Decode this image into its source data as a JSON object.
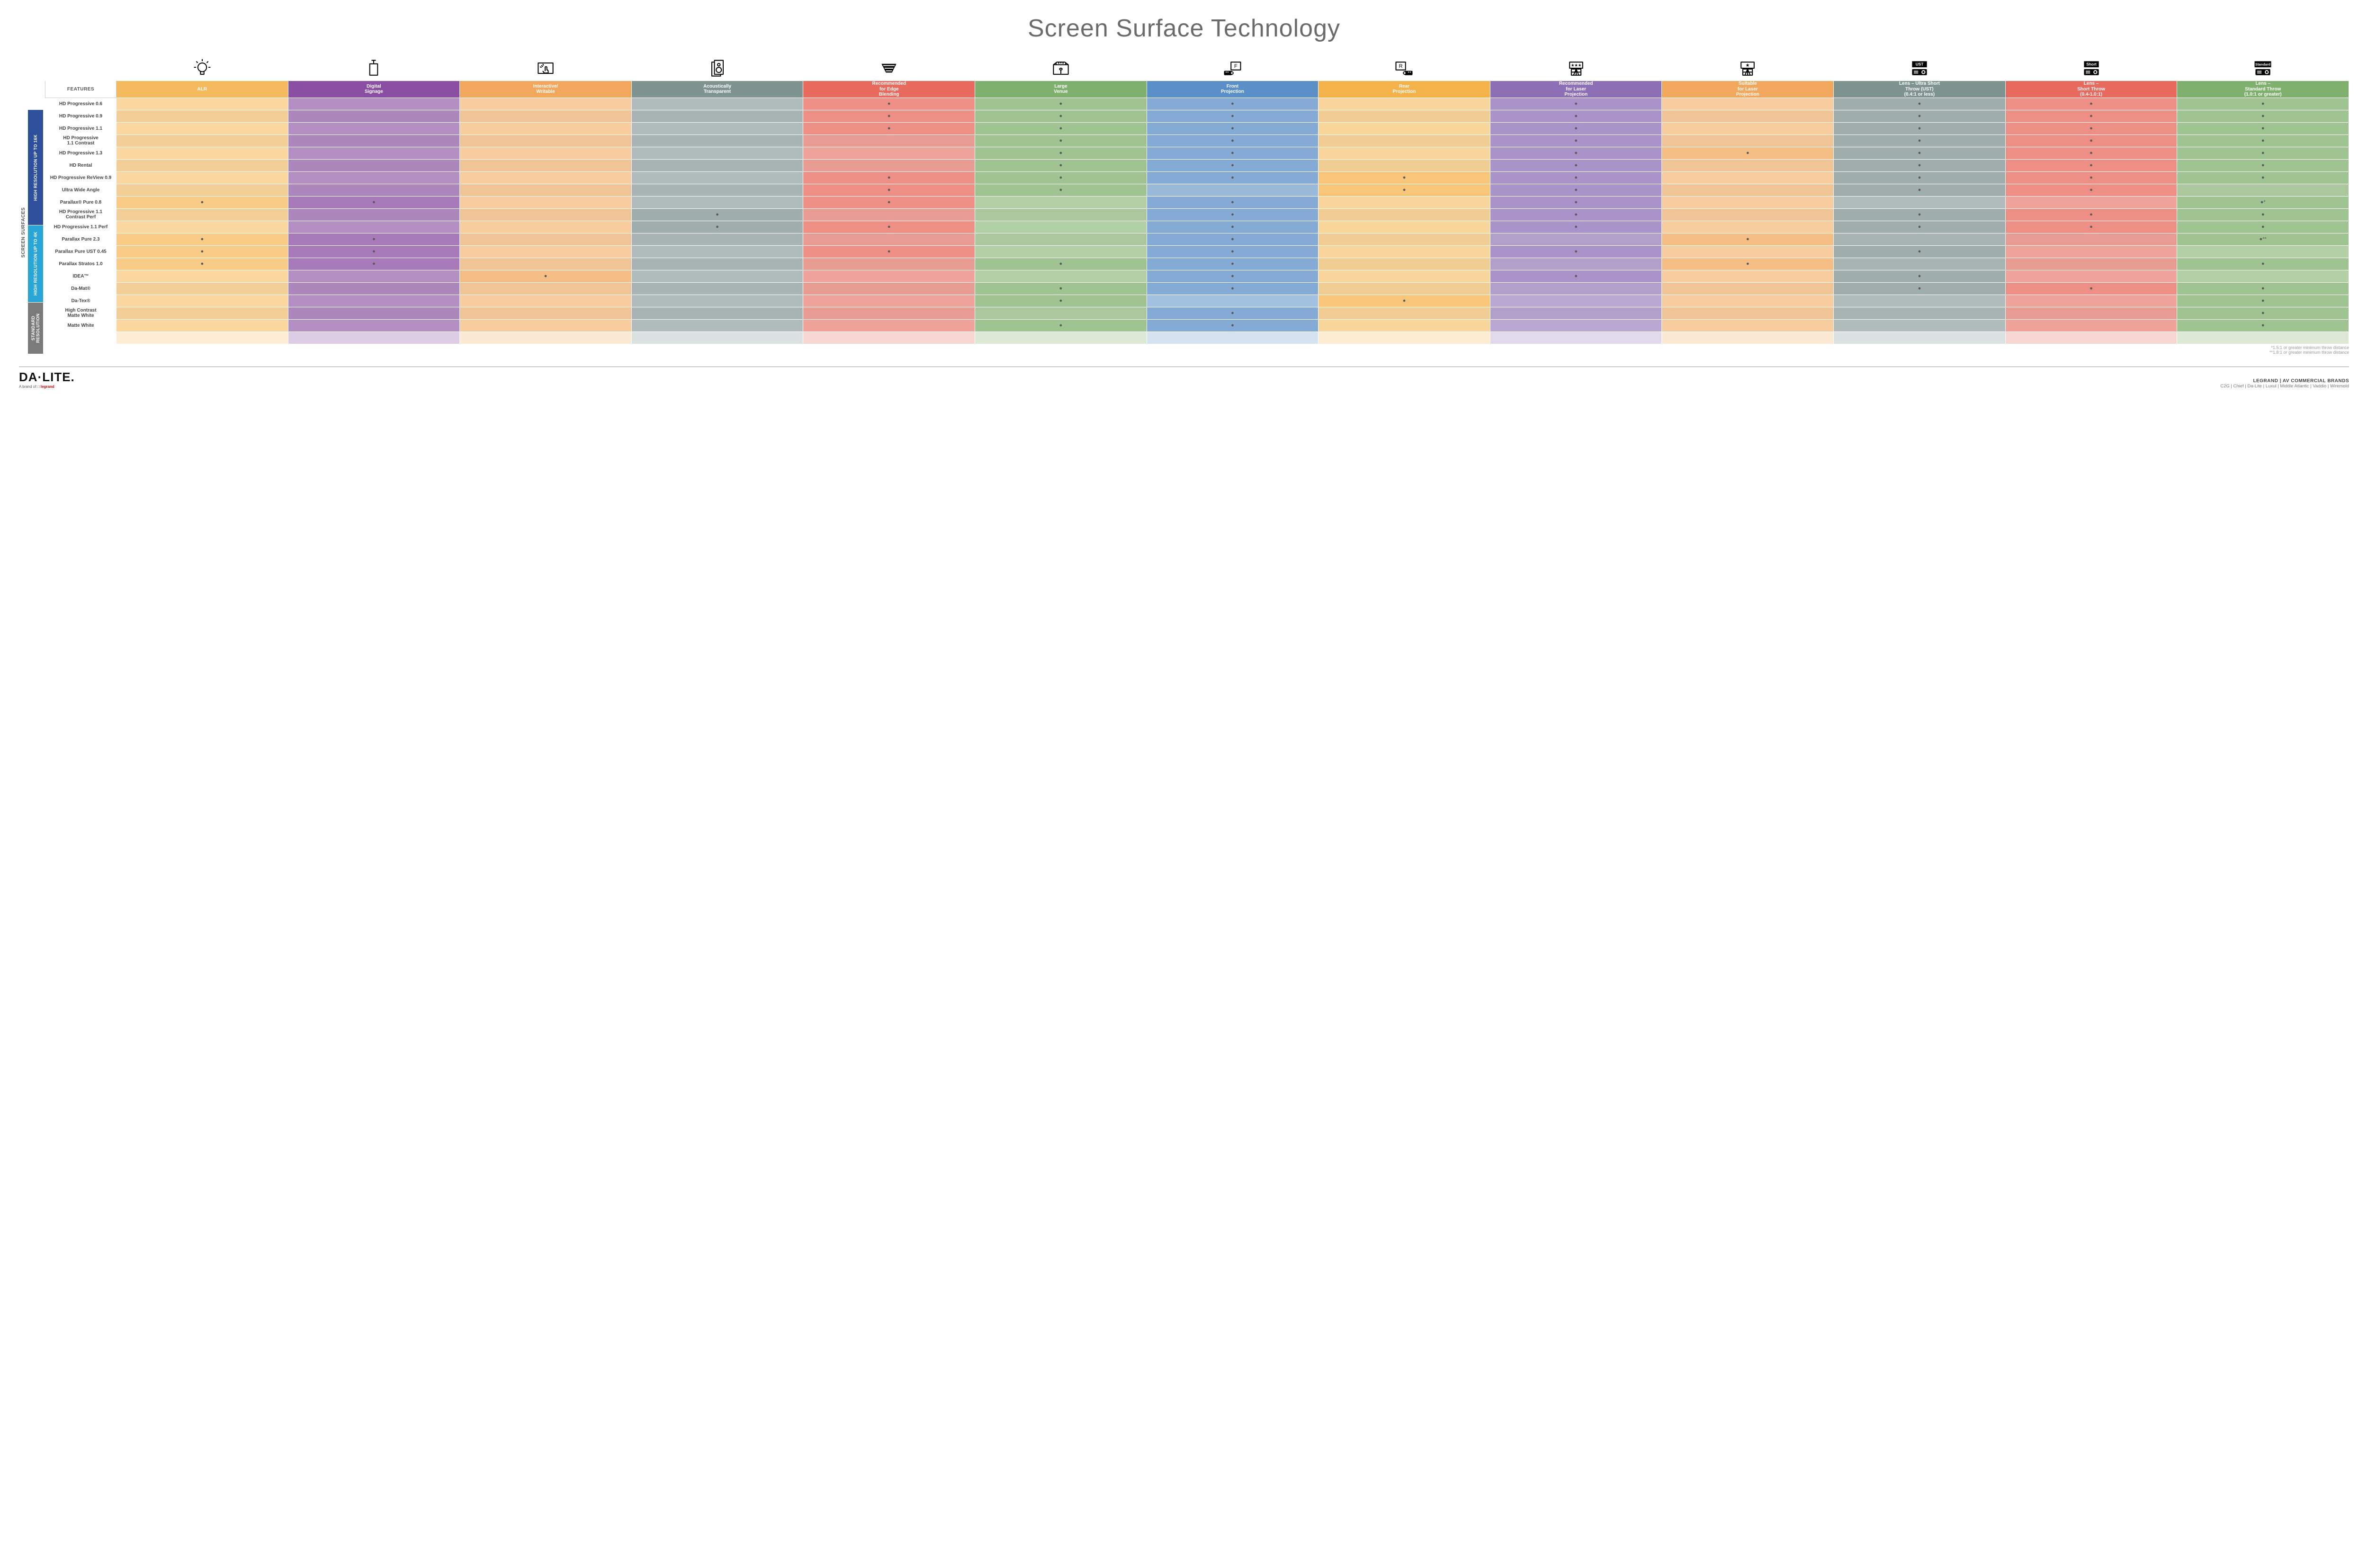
{
  "title": "Screen Surface Technology",
  "colors": {
    "columns": [
      {
        "base": "#f5b95e",
        "alt": "#f9d79f"
      },
      {
        "base": "#8a4fa3",
        "alt": "#b48fc4"
      },
      {
        "base": "#f2a85c",
        "alt": "#f7cda0"
      },
      {
        "base": "#7f9391",
        "alt": "#b0bcbb"
      },
      {
        "base": "#e86a5e",
        "alt": "#f0a39b"
      },
      {
        "base": "#7fb06d",
        "alt": "#b3cfa6"
      },
      {
        "base": "#5a8fc7",
        "alt": "#a2c0df"
      },
      {
        "base": "#f3b24a",
        "alt": "#f8d59b"
      },
      {
        "base": "#8d6fb5",
        "alt": "#bba8d2"
      },
      {
        "base": "#f2a85c",
        "alt": "#f7cda0"
      },
      {
        "base": "#7f9391",
        "alt": "#b0bcbb"
      },
      {
        "base": "#e86a5e",
        "alt": "#f0a39b"
      },
      {
        "base": "#7fb06d",
        "alt": "#b3cfa6"
      }
    ],
    "groups": {
      "16k": "#2d4f9c",
      "4k": "#2aa6d6",
      "std": "#7a7a7a"
    }
  },
  "columns": [
    {
      "label": "ALR",
      "icon": "bulb"
    },
    {
      "label": "Digital\nSignage",
      "icon": "signage"
    },
    {
      "label": "Interactive/\nWritable",
      "icon": "touch"
    },
    {
      "label": "Acoustically\nTransparent",
      "icon": "speaker"
    },
    {
      "label": "Recommended\nfor Edge\nBlending",
      "icon": "blend"
    },
    {
      "label": "Large\nVenue",
      "icon": "venue"
    },
    {
      "label": "Front\nProjection",
      "icon": "front"
    },
    {
      "label": "Rear\nProjection",
      "icon": "rear"
    },
    {
      "label": "Recommended\nfor Laser\nProjection",
      "icon": "laser-rec"
    },
    {
      "label": "Suitable\nfor Laser\nProjection",
      "icon": "laser-suit"
    },
    {
      "label": "Lens – Ultra Short\nThrow (UST)\n(0.4:1 or less)",
      "icon": "ust"
    },
    {
      "label": "Lens –\nShort Throw\n(0.4-1.0:1)",
      "icon": "short"
    },
    {
      "label": "Lens –\nStandard Throw\n(1.0:1 or greater)",
      "icon": "standard"
    }
  ],
  "side": {
    "outer": "SCREEN SURFACES",
    "groups": [
      {
        "key": "16k",
        "label": "HIGH RESOLUTION UP TO 16K",
        "rows": 9
      },
      {
        "key": "4k",
        "label": "HIGH RESOLUTION UP TO 4K",
        "rows": 6
      },
      {
        "key": "std",
        "label": "STANDARD\nRESOLUTION",
        "rows": 4
      }
    ]
  },
  "rows": [
    {
      "g": "16k",
      "label": "HD Progressive 0.6",
      "d": [
        0,
        0,
        0,
        0,
        1,
        1,
        1,
        0,
        1,
        0,
        1,
        1,
        1
      ]
    },
    {
      "g": "16k",
      "label": "HD Progressive 0.9",
      "d": [
        0,
        0,
        0,
        0,
        1,
        1,
        1,
        0,
        1,
        0,
        1,
        1,
        1
      ]
    },
    {
      "g": "16k",
      "label": "HD Progressive 1.1",
      "d": [
        0,
        0,
        0,
        0,
        1,
        1,
        1,
        0,
        1,
        0,
        1,
        1,
        1
      ]
    },
    {
      "g": "16k",
      "label": "HD Progressive\n1.1 Contrast",
      "d": [
        0,
        0,
        0,
        0,
        0,
        1,
        1,
        0,
        1,
        0,
        1,
        1,
        1
      ]
    },
    {
      "g": "16k",
      "label": "HD Progressive 1.3",
      "d": [
        0,
        0,
        0,
        0,
        0,
        1,
        1,
        0,
        1,
        1,
        1,
        1,
        1
      ]
    },
    {
      "g": "16k",
      "label": "HD Rental",
      "d": [
        0,
        0,
        0,
        0,
        0,
        1,
        1,
        0,
        1,
        0,
        1,
        1,
        1
      ]
    },
    {
      "g": "16k",
      "label": "HD Progressive ReView 0.9",
      "d": [
        0,
        0,
        0,
        0,
        1,
        1,
        1,
        1,
        1,
        0,
        1,
        1,
        1
      ]
    },
    {
      "g": "16k",
      "label": "Ultra Wide Angle",
      "d": [
        0,
        0,
        0,
        0,
        1,
        1,
        0,
        1,
        1,
        0,
        1,
        1,
        0
      ]
    },
    {
      "g": "16k",
      "label": "Parallax® Pure 0.8",
      "d": [
        1,
        1,
        0,
        0,
        1,
        0,
        1,
        0,
        1,
        0,
        0,
        0,
        "●*"
      ]
    },
    {
      "g": "4k",
      "label": "HD Progressive 1.1\nContrast Perf",
      "d": [
        0,
        0,
        0,
        1,
        0,
        0,
        1,
        0,
        1,
        0,
        1,
        1,
        1
      ]
    },
    {
      "g": "4k",
      "label": "HD Progressive 1.1 Perf",
      "d": [
        0,
        0,
        0,
        1,
        1,
        0,
        1,
        0,
        1,
        0,
        1,
        1,
        1
      ]
    },
    {
      "g": "4k",
      "label": "Parallax Pure 2.3",
      "d": [
        1,
        1,
        0,
        0,
        0,
        0,
        1,
        0,
        0,
        1,
        0,
        0,
        "●**"
      ]
    },
    {
      "g": "4k",
      "label": "Parallax Pure UST 0.45",
      "d": [
        1,
        1,
        0,
        0,
        1,
        0,
        1,
        0,
        1,
        0,
        1,
        0,
        0
      ]
    },
    {
      "g": "4k",
      "label": "Parallax Stratos 1.0",
      "d": [
        1,
        1,
        0,
        0,
        0,
        1,
        1,
        0,
        0,
        1,
        0,
        0,
        1
      ]
    },
    {
      "g": "4k",
      "label": "IDEA™",
      "d": [
        0,
        0,
        1,
        0,
        0,
        0,
        1,
        0,
        1,
        0,
        1,
        0,
        0
      ]
    },
    {
      "g": "std",
      "label": "Da-Mat®",
      "d": [
        0,
        0,
        0,
        0,
        0,
        1,
        1,
        0,
        0,
        0,
        1,
        1,
        1
      ]
    },
    {
      "g": "std",
      "label": "Da-Tex®",
      "d": [
        0,
        0,
        0,
        0,
        0,
        1,
        0,
        1,
        0,
        0,
        0,
        0,
        1
      ]
    },
    {
      "g": "std",
      "label": "High Contrast\nMatte White",
      "d": [
        0,
        0,
        0,
        0,
        0,
        0,
        1,
        0,
        0,
        0,
        0,
        0,
        1
      ]
    },
    {
      "g": "std",
      "label": "Matte White",
      "d": [
        0,
        0,
        0,
        0,
        0,
        1,
        1,
        0,
        0,
        0,
        0,
        0,
        1
      ]
    }
  ],
  "featuresHeader": "FEATURES",
  "footnotes": [
    "*1.5:1 or greater minimum throw distance",
    "**1.8:1 or greater minimum throw distance"
  ],
  "footer": {
    "brand": "DA·LITE.",
    "sub_prefix": "A brand of ",
    "sub_brand": "legrand",
    "right1": "LEGRAND | AV COMMERCIAL BRANDS",
    "right2": "C2G  |  Chief  |  Da-Lite  |  Luxul  |  Middle Atlantic  |  Vaddio  |  Wiremold"
  },
  "icons": {
    "stroke": "#000",
    "fill": "none",
    "sw": 2
  }
}
